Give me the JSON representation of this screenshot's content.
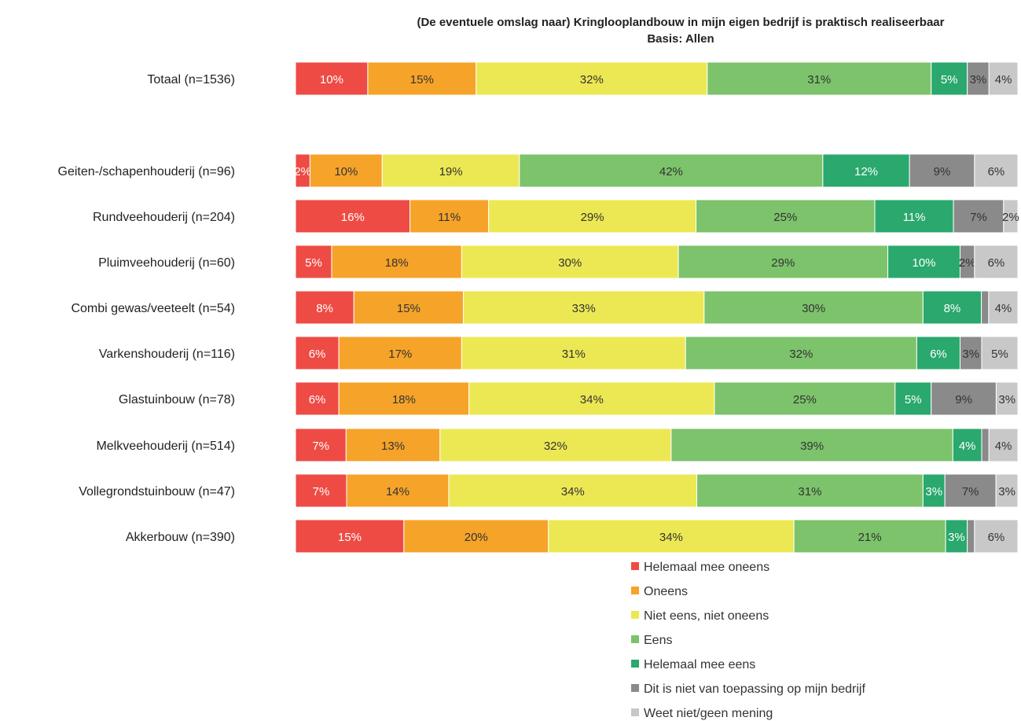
{
  "chart_data": {
    "type": "bar",
    "orientation": "horizontal",
    "stacked": true,
    "normalized": true,
    "title": "(De eventuele omslag naar) Kringlooplandbouw  in mijn eigen bedrijf is praktisch realiseerbaar",
    "subtitle": "Basis: Allen",
    "xlabel": "",
    "ylabel": "",
    "grid": false,
    "legend_position": "bottom",
    "categories": [
      "Totaal (n=1536)",
      "Geiten-/schapenhouderij (n=96)",
      "Rundveehouderij (n=204)",
      "Pluimveehouderij (n=60)",
      "Combi gewas/veeteelt (n=54)",
      "Varkenshouderij (n=116)",
      "Glastuinbouw (n=78)",
      "Melkveehouderij (n=514)",
      "Vollegrondstuinbouw (n=47)",
      "Akkerbouw (n=390)"
    ],
    "series": [
      {
        "name": "Helemaal mee oneens",
        "color": "#ee4b45",
        "label_color": "#ffffff",
        "values": [
          10,
          2,
          16,
          5,
          8,
          6,
          6,
          7,
          7,
          15
        ],
        "labels": [
          "10%",
          "2%",
          "16%",
          "5%",
          "8%",
          "6%",
          "6%",
          "7%",
          "7%",
          "15%"
        ]
      },
      {
        "name": "Oneens",
        "color": "#f6a32a",
        "label_color": "#333333",
        "values": [
          15,
          10,
          11,
          18,
          15,
          17,
          18,
          13,
          14,
          20
        ],
        "labels": [
          "15%",
          "10%",
          "11%",
          "18%",
          "15%",
          "17%",
          "18%",
          "13%",
          "14%",
          "20%"
        ]
      },
      {
        "name": "Niet eens, niet oneens",
        "color": "#ece853",
        "label_color": "#333333",
        "values": [
          32,
          19,
          29,
          30,
          33,
          31,
          34,
          32,
          34,
          34
        ],
        "labels": [
          "32%",
          "19%",
          "29%",
          "30%",
          "33%",
          "31%",
          "34%",
          "32%",
          "34%",
          "34%"
        ]
      },
      {
        "name": "Eens",
        "color": "#7cc36b",
        "label_color": "#333333",
        "values": [
          31,
          42,
          25,
          29,
          30,
          32,
          25,
          39,
          31,
          21
        ],
        "labels": [
          "31%",
          "42%",
          "25%",
          "29%",
          "30%",
          "32%",
          "25%",
          "39%",
          "31%",
          "21%"
        ]
      },
      {
        "name": "Helemaal mee eens",
        "color": "#2aa86d",
        "label_color": "#ffffff",
        "values": [
          5,
          12,
          11,
          10,
          8,
          6,
          5,
          4,
          3,
          3
        ],
        "labels": [
          "5%",
          "12%",
          "11%",
          "10%",
          "8%",
          "6%",
          "5%",
          "4%",
          "3%",
          "3%"
        ]
      },
      {
        "name": "Dit is niet van toepassing op mijn bedrijf",
        "color": "#8a8a8a",
        "label_color": "#333333",
        "values": [
          3,
          9,
          7,
          2,
          1,
          3,
          9,
          1,
          7,
          1
        ],
        "labels": [
          "3%",
          "9%",
          "7%",
          "2%",
          "",
          "3%",
          "9%",
          "",
          "7%",
          ""
        ]
      },
      {
        "name": "Weet niet/geen mening",
        "color": "#c8c8c8",
        "label_color": "#333333",
        "values": [
          4,
          6,
          2,
          6,
          4,
          5,
          3,
          4,
          3,
          6
        ],
        "labels": [
          "4%",
          "6%",
          "2%",
          "6%",
          "4%",
          "5%",
          "3%",
          "4%",
          "3%",
          "6%"
        ]
      }
    ]
  }
}
